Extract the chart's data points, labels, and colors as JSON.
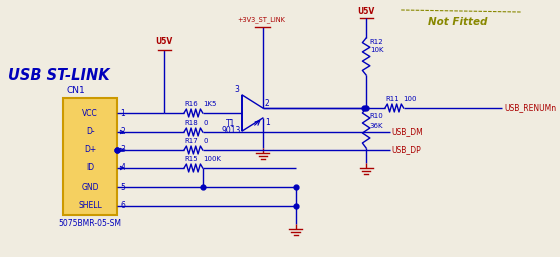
{
  "bg_color": "#f0ece0",
  "blue": "#0000bb",
  "red": "#aa0000",
  "olive": "#888800",
  "title": "USB ST-LINK",
  "not_fitted": "Not Fitted",
  "connector_pins": [
    "VCC",
    "D-",
    "D+",
    "ID",
    "GND",
    "SHELL"
  ],
  "pin_numbers": [
    "1",
    "2",
    "3",
    "4",
    "5",
    "6"
  ],
  "connector_label": "CN1",
  "connector_part": "5075BMR-05-SM"
}
